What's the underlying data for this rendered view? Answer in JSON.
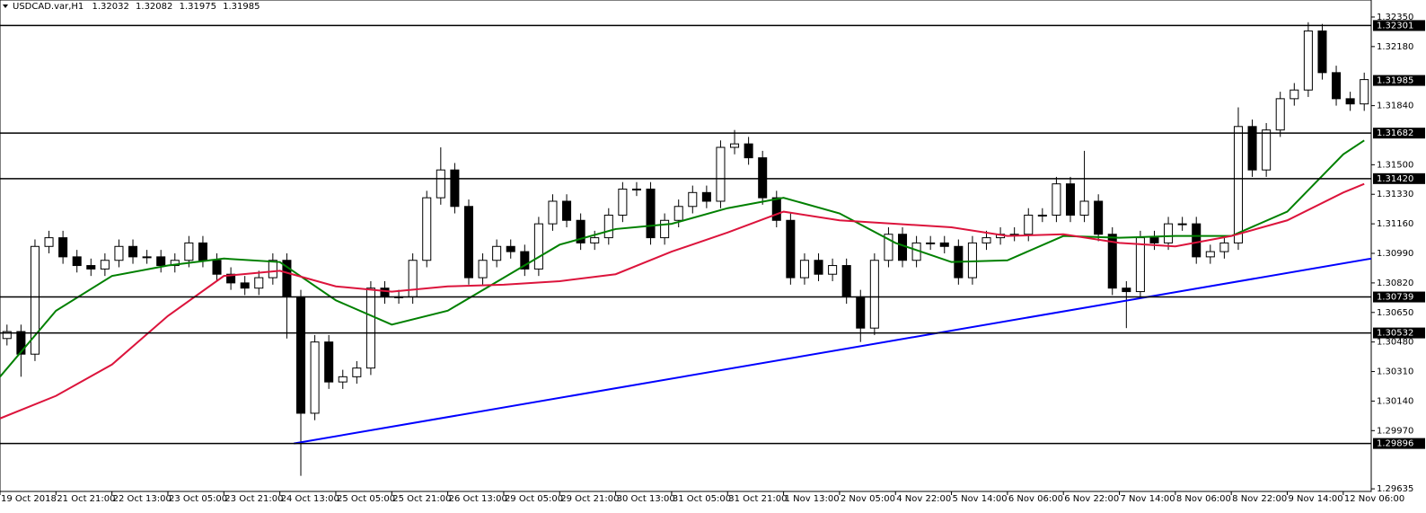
{
  "chart_data": {
    "type": "candlestick",
    "title": "USDCAD.var,H1",
    "header_values": [
      1.32032,
      1.32082,
      1.31975,
      1.31985
    ],
    "x": [
      2,
      6,
      10,
      14,
      18,
      22,
      26,
      30,
      34,
      38,
      42,
      46,
      50,
      54,
      58,
      62,
      66,
      70,
      74,
      78,
      82,
      86,
      90,
      94,
      98,
      102,
      106,
      110,
      114,
      118,
      122,
      126,
      130,
      134,
      138,
      142,
      146,
      150,
      154,
      158,
      162,
      166,
      170,
      174,
      178,
      182,
      186,
      190,
      194,
      198,
      202,
      206,
      210,
      214,
      218,
      222,
      226,
      230,
      234,
      238,
      242,
      246,
      250,
      254,
      258,
      262,
      266,
      270,
      274,
      278,
      282,
      286,
      290,
      294,
      298,
      302,
      306,
      310,
      314,
      318,
      322,
      326,
      330,
      334,
      338,
      342,
      346,
      350,
      354,
      358,
      362,
      366,
      370,
      374,
      378,
      382,
      386,
      390
    ],
    "open": [
      1.305,
      1.3054,
      1.3041,
      1.3103,
      1.3108,
      1.3097,
      1.3092,
      1.309,
      1.3095,
      1.3103,
      1.3097,
      1.3097,
      1.3092,
      1.3095,
      1.3105,
      1.3095,
      1.3087,
      1.3082,
      1.3079,
      1.3085,
      1.3095,
      1.3074,
      1.3007,
      1.3048,
      1.3025,
      1.3028,
      1.3033,
      1.3079,
      1.3074,
      1.3074,
      1.3095,
      1.3131,
      1.3147,
      1.3126,
      1.3085,
      1.3095,
      1.3103,
      1.31,
      1.309,
      1.3116,
      1.3129,
      1.3118,
      1.3105,
      1.3108,
      1.3121,
      1.3136,
      1.3136,
      1.3108,
      1.3118,
      1.3126,
      1.3134,
      1.3129,
      1.316,
      1.3162,
      1.3154,
      1.3131,
      1.3118,
      1.3085,
      1.3095,
      1.3087,
      1.3092,
      1.3074,
      1.3056,
      1.3095,
      1.311,
      1.3095,
      1.3105,
      1.3105,
      1.3103,
      1.3085,
      1.3105,
      1.3108,
      1.311,
      1.311,
      1.3121,
      1.3121,
      1.3139,
      1.3121,
      1.3129,
      1.311,
      1.3079,
      1.3077,
      1.3108,
      1.3105,
      1.3116,
      1.3116,
      1.3097,
      1.31,
      1.3105,
      1.3172,
      1.3147,
      1.317,
      1.3188,
      1.3193,
      1.3227,
      1.3203,
      1.3188,
      1.3185
    ],
    "high": [
      1.3058,
      1.3058,
      1.3107,
      1.3112,
      1.3112,
      1.3101,
      1.3096,
      1.3099,
      1.3107,
      1.3107,
      1.3101,
      1.3101,
      1.3099,
      1.3109,
      1.3109,
      1.3099,
      1.3091,
      1.3086,
      1.3089,
      1.3099,
      1.3099,
      1.3078,
      1.3052,
      1.3052,
      1.3032,
      1.3037,
      1.3083,
      1.3083,
      1.3078,
      1.3099,
      1.3135,
      1.316,
      1.3151,
      1.313,
      1.3099,
      1.3107,
      1.3107,
      1.3104,
      1.312,
      1.3133,
      1.3133,
      1.3122,
      1.3112,
      1.3125,
      1.314,
      1.314,
      1.314,
      1.3122,
      1.313,
      1.3138,
      1.3138,
      1.3164,
      1.317,
      1.3166,
      1.3158,
      1.3135,
      1.3122,
      1.3099,
      1.3099,
      1.3096,
      1.3096,
      1.3078,
      1.3099,
      1.3114,
      1.3114,
      1.3109,
      1.3109,
      1.3109,
      1.3107,
      1.3109,
      1.3112,
      1.3114,
      1.3114,
      1.3125,
      1.3125,
      1.3143,
      1.3143,
      1.3158,
      1.3133,
      1.3114,
      1.3083,
      1.3112,
      1.3112,
      1.312,
      1.312,
      1.312,
      1.3104,
      1.3109,
      1.3183,
      1.3176,
      1.3174,
      1.3192,
      1.3197,
      1.3232,
      1.3231,
      1.3207,
      1.3192,
      1.3203
    ],
    "low": [
      1.3046,
      1.3028,
      1.3037,
      1.3099,
      1.3093,
      1.3088,
      1.3086,
      1.3086,
      1.3091,
      1.3093,
      1.3093,
      1.3088,
      1.3088,
      1.3091,
      1.3091,
      1.3083,
      1.3078,
      1.3075,
      1.3075,
      1.3081,
      1.305,
      1.2971,
      1.3003,
      1.3021,
      1.3021,
      1.3024,
      1.3029,
      1.307,
      1.307,
      1.307,
      1.3091,
      1.3127,
      1.3122,
      1.3081,
      1.3081,
      1.3091,
      1.3096,
      1.3086,
      1.3086,
      1.3112,
      1.3114,
      1.3101,
      1.3101,
      1.3104,
      1.3117,
      1.3132,
      1.3104,
      1.3104,
      1.3114,
      1.3122,
      1.3125,
      1.3125,
      1.3156,
      1.315,
      1.3127,
      1.3114,
      1.3081,
      1.3081,
      1.3083,
      1.3083,
      1.307,
      1.3048,
      1.3052,
      1.3091,
      1.3091,
      1.3091,
      1.3101,
      1.3099,
      1.3081,
      1.3081,
      1.3101,
      1.3104,
      1.3106,
      1.3106,
      1.3117,
      1.3117,
      1.3117,
      1.3117,
      1.3106,
      1.3075,
      1.3056,
      1.3073,
      1.3101,
      1.3101,
      1.3112,
      1.3093,
      1.3093,
      1.3096,
      1.3101,
      1.3143,
      1.3143,
      1.3166,
      1.3184,
      1.3189,
      1.3199,
      1.3184,
      1.3181,
      1.3181
    ],
    "close": [
      1.3054,
      1.3041,
      1.3103,
      1.3108,
      1.3097,
      1.3092,
      1.309,
      1.3095,
      1.3103,
      1.3097,
      1.3097,
      1.3092,
      1.3095,
      1.3105,
      1.3095,
      1.3087,
      1.3082,
      1.3079,
      1.3085,
      1.3095,
      1.3074,
      1.3007,
      1.3048,
      1.3025,
      1.3028,
      1.3033,
      1.3079,
      1.3074,
      1.3074,
      1.3095,
      1.3131,
      1.3147,
      1.3126,
      1.3085,
      1.3095,
      1.3103,
      1.31,
      1.309,
      1.3116,
      1.3129,
      1.3118,
      1.3105,
      1.3108,
      1.3121,
      1.3136,
      1.3136,
      1.3108,
      1.3118,
      1.3126,
      1.3134,
      1.3129,
      1.316,
      1.3162,
      1.3154,
      1.3131,
      1.3118,
      1.3085,
      1.3095,
      1.3087,
      1.3092,
      1.3074,
      1.3056,
      1.3095,
      1.311,
      1.3095,
      1.3105,
      1.3105,
      1.3103,
      1.3085,
      1.3105,
      1.3108,
      1.311,
      1.311,
      1.3121,
      1.3121,
      1.3139,
      1.3121,
      1.3129,
      1.311,
      1.3079,
      1.3077,
      1.3108,
      1.3105,
      1.3116,
      1.3116,
      1.3097,
      1.31,
      1.3105,
      1.3172,
      1.3147,
      1.317,
      1.3188,
      1.3193,
      1.3227,
      1.3203,
      1.3188,
      1.3185,
      1.3199
    ],
    "up_color": "#ffffff",
    "down_color": "#000000",
    "xlim": [
      0,
      392
    ],
    "xticks": [
      {
        "value": 0,
        "label": "19 Oct 2018"
      },
      {
        "value": 16,
        "label": "21 Oct 21:00"
      },
      {
        "value": 32,
        "label": "22 Oct 13:00"
      },
      {
        "value": 48,
        "label": "23 Oct 05:00"
      },
      {
        "value": 64,
        "label": "23 Oct 21:00"
      },
      {
        "value": 80,
        "label": "24 Oct 13:00"
      },
      {
        "value": 96,
        "label": "25 Oct 05:00"
      },
      {
        "value": 112,
        "label": "25 Oct 21:00"
      },
      {
        "value": 128,
        "label": "26 Oct 13:00"
      },
      {
        "value": 144,
        "label": "29 Oct 05:00"
      },
      {
        "value": 160,
        "label": "29 Oct 21:00"
      },
      {
        "value": 176,
        "label": "30 Oct 13:00"
      },
      {
        "value": 192,
        "label": "31 Oct 05:00"
      },
      {
        "value": 208,
        "label": "31 Oct 21:00"
      },
      {
        "value": 224,
        "label": "1 Nov 13:00"
      },
      {
        "value": 240,
        "label": "2 Nov 05:00"
      },
      {
        "value": 256,
        "label": "4 Nov 22:00"
      },
      {
        "value": 272,
        "label": "5 Nov 14:00"
      },
      {
        "value": 288,
        "label": "6 Nov 06:00"
      },
      {
        "value": 304,
        "label": "6 Nov 22:00"
      },
      {
        "value": 320,
        "label": "7 Nov 14:00"
      },
      {
        "value": 336,
        "label": "8 Nov 06:00"
      },
      {
        "value": 352,
        "label": "8 Nov 22:00"
      },
      {
        "value": 368,
        "label": "9 Nov 14:00"
      },
      {
        "value": 384,
        "label": "12 Nov 06:00"
      }
    ],
    "ylim": [
      1.2962,
      1.32448
    ],
    "yticks": [
      {
        "value": 1.3235,
        "label": "1.32350"
      },
      {
        "value": 1.3218,
        "label": "1.32180"
      },
      {
        "value": 1.3184,
        "label": "1.31840"
      },
      {
        "value": 1.315,
        "label": "1.31500"
      },
      {
        "value": 1.3133,
        "label": "1.31330"
      },
      {
        "value": 1.3116,
        "label": "1.31160"
      },
      {
        "value": 1.3099,
        "label": "1.30990"
      },
      {
        "value": 1.3082,
        "label": "1.30820"
      },
      {
        "value": 1.3065,
        "label": "1.30650"
      },
      {
        "value": 1.3048,
        "label": "1.30480"
      },
      {
        "value": 1.3031,
        "label": "1.30310"
      },
      {
        "value": 1.3014,
        "label": "1.30140"
      },
      {
        "value": 1.2997,
        "label": "1.29970"
      },
      1.29635
    ],
    "levels": [
      1.32301,
      1.31682,
      {
        "value": 1.3142,
        "label": "1.31420"
      },
      1.30739,
      1.30532,
      1.29896
    ],
    "level_color": "#000000",
    "overlays": [
      {
        "color": "#008000",
        "x": [
          0,
          16,
          32,
          48,
          64,
          80,
          96,
          112,
          128,
          144,
          160,
          176,
          192,
          208,
          224,
          240,
          256,
          272,
          288,
          304,
          320,
          336,
          352,
          368,
          384,
          390
        ],
        "values": [
          1.3028,
          1.3066,
          1.3086,
          1.3092,
          1.3096,
          1.3094,
          1.3072,
          1.3058,
          1.3066,
          1.3085,
          1.3104,
          1.3113,
          1.3116,
          1.3125,
          1.3131,
          1.3122,
          1.3105,
          1.3094,
          1.3095,
          1.3109,
          1.3108,
          1.3109,
          1.3109,
          1.3123,
          1.3156,
          1.3164
        ]
      },
      {
        "color": "#dc143c",
        "x": [
          0,
          16,
          32,
          48,
          64,
          80,
          96,
          112,
          128,
          144,
          160,
          176,
          192,
          208,
          224,
          240,
          256,
          272,
          288,
          304,
          320,
          336,
          352,
          368,
          384,
          390
        ],
        "values": [
          1.3004,
          1.3017,
          1.3035,
          1.3063,
          1.3086,
          1.3089,
          1.308,
          1.3077,
          1.308,
          1.3081,
          1.3083,
          1.3087,
          1.31,
          1.3111,
          1.3123,
          1.3118,
          1.3116,
          1.3114,
          1.3109,
          1.311,
          1.3105,
          1.3103,
          1.3109,
          1.3118,
          1.3134,
          1.3139
        ]
      },
      {
        "color": "#0000ff",
        "x": [
          84,
          392
        ],
        "values": [
          1.29896,
          1.3096
        ]
      }
    ]
  }
}
